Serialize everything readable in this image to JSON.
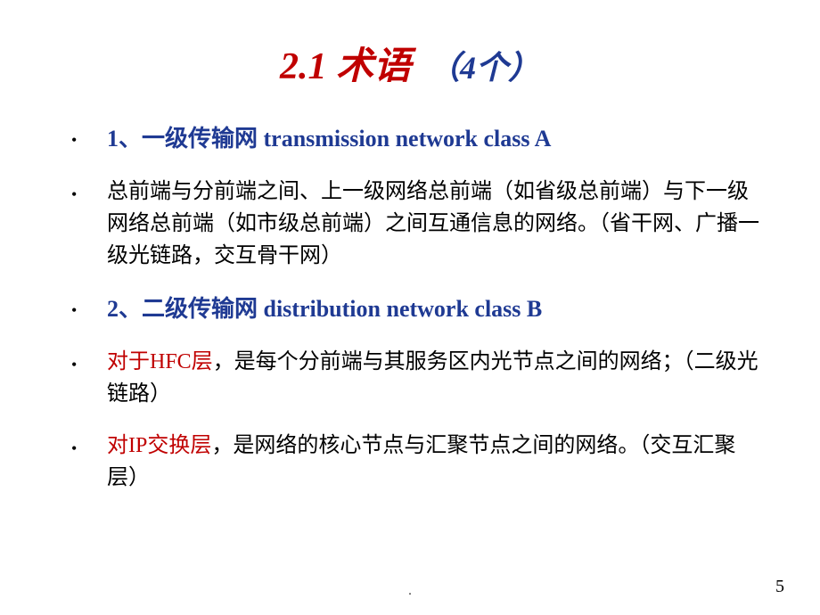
{
  "title": {
    "main": "2.1 术语",
    "sub": "（4个）"
  },
  "colors": {
    "title_main": "#c00000",
    "title_sub": "#1f3a93",
    "heading": "#1f3a93",
    "body": "#000000",
    "red": "#c00000",
    "background": "#ffffff"
  },
  "typography": {
    "title_main_fontsize": 42,
    "title_sub_fontsize": 36,
    "heading_fontsize": 26,
    "body_fontsize": 24,
    "page_number_fontsize": 20,
    "font_family": "Times New Roman, SimSun, serif"
  },
  "items": [
    {
      "type": "heading",
      "text": "1、一级传输网 transmission network class A"
    },
    {
      "type": "body",
      "text": "总前端与分前端之间、上一级网络总前端（如省级总前端）与下一级网络总前端（如市级总前端）之间互通信息的网络。（省干网、广播一级光链路，交互骨干网）"
    },
    {
      "type": "heading",
      "text": "2、二级传输网 distribution network class B"
    },
    {
      "type": "body_with_red",
      "red": "对于HFC层",
      "rest": "，是每个分前端与其服务区内光节点之间的网络；（二级光链路）"
    },
    {
      "type": "body_with_red",
      "red": "对IP交换层",
      "rest": "，是网络的核心节点与汇聚节点之间的网络。（交互汇聚层）"
    }
  ],
  "page_number": "5",
  "footer_dot": "."
}
